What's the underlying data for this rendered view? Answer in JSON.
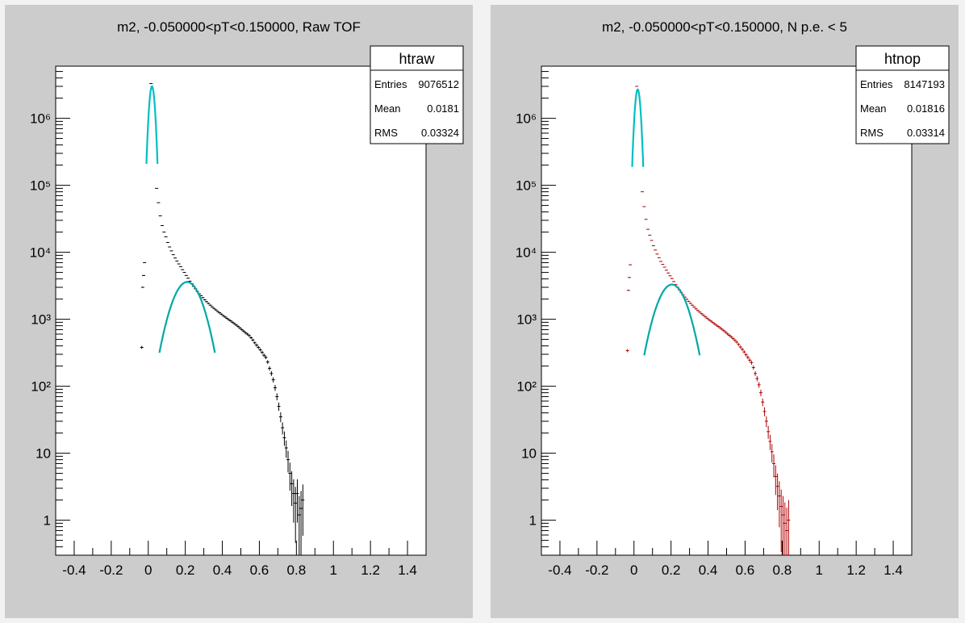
{
  "chart_data": [
    {
      "type": "scatter",
      "title": "m2, -0.050000<pT<0.150000, Raw TOF",
      "xlabel": "",
      "ylabel": "",
      "xlim": [
        -0.5,
        1.5
      ],
      "ylim": [
        0.3,
        6000000
      ],
      "yscale": "log",
      "grid": false,
      "x_ticks": [
        "-0.4",
        "-0.2",
        "0",
        "0.2",
        "0.4",
        "0.6",
        "0.8",
        "1",
        "1.2",
        "1.4"
      ],
      "y_ticks": [
        "1",
        "10",
        "10²",
        "10³",
        "10⁴",
        "10⁵",
        "10⁶"
      ],
      "marker_color": "#000000",
      "stats": {
        "name": "htraw",
        "rows": [
          {
            "label": "Entries",
            "value": "9076512"
          },
          {
            "label": "Mean",
            "value": "0.0181"
          },
          {
            "label": "RMS",
            "value": "0.03324"
          }
        ]
      },
      "points": [
        [
          -0.035,
          380
        ],
        [
          -0.03,
          3000
        ],
        [
          -0.025,
          4500
        ],
        [
          -0.02,
          7000
        ],
        [
          0.015,
          3300000
        ],
        [
          0.045,
          90000
        ],
        [
          0.055,
          55000
        ],
        [
          0.065,
          35000
        ],
        [
          0.075,
          25000
        ],
        [
          0.085,
          20000
        ],
        [
          0.095,
          17000
        ],
        [
          0.105,
          14000
        ],
        [
          0.115,
          12000
        ],
        [
          0.125,
          10500
        ],
        [
          0.135,
          9200
        ],
        [
          0.145,
          8200
        ],
        [
          0.155,
          7400
        ],
        [
          0.165,
          6700
        ],
        [
          0.175,
          6100
        ],
        [
          0.185,
          5500
        ],
        [
          0.195,
          5000
        ],
        [
          0.205,
          4500
        ],
        [
          0.215,
          4100
        ],
        [
          0.225,
          3700
        ],
        [
          0.235,
          3400
        ],
        [
          0.245,
          3100
        ],
        [
          0.255,
          2850
        ],
        [
          0.265,
          2600
        ],
        [
          0.275,
          2400
        ],
        [
          0.285,
          2250
        ],
        [
          0.295,
          2100
        ],
        [
          0.305,
          1950
        ],
        [
          0.315,
          1830
        ],
        [
          0.325,
          1720
        ],
        [
          0.335,
          1620
        ],
        [
          0.345,
          1530
        ],
        [
          0.355,
          1450
        ],
        [
          0.365,
          1380
        ],
        [
          0.375,
          1310
        ],
        [
          0.385,
          1250
        ],
        [
          0.395,
          1190
        ],
        [
          0.405,
          1130
        ],
        [
          0.415,
          1080
        ],
        [
          0.425,
          1030
        ],
        [
          0.435,
          985
        ],
        [
          0.445,
          945
        ],
        [
          0.455,
          900
        ],
        [
          0.465,
          860
        ],
        [
          0.475,
          820
        ],
        [
          0.485,
          780
        ],
        [
          0.495,
          740
        ],
        [
          0.505,
          700
        ],
        [
          0.515,
          665
        ],
        [
          0.525,
          630
        ],
        [
          0.535,
          600
        ],
        [
          0.545,
          570
        ],
        [
          0.555,
          530
        ],
        [
          0.565,
          490
        ],
        [
          0.575,
          445
        ],
        [
          0.585,
          410
        ],
        [
          0.595,
          380
        ],
        [
          0.605,
          350
        ],
        [
          0.615,
          320
        ],
        [
          0.625,
          290
        ],
        [
          0.635,
          270
        ],
        [
          0.645,
          230
        ],
        [
          0.655,
          185
        ],
        [
          0.665,
          155
        ],
        [
          0.675,
          125
        ],
        [
          0.685,
          95
        ],
        [
          0.695,
          70
        ],
        [
          0.705,
          50
        ],
        [
          0.715,
          35
        ],
        [
          0.725,
          24
        ],
        [
          0.735,
          17
        ],
        [
          0.745,
          12
        ],
        [
          0.755,
          8
        ],
        [
          0.765,
          5
        ],
        [
          0.775,
          3.5
        ],
        [
          0.785,
          2.5
        ],
        [
          0.795,
          1.8
        ],
        [
          0.805,
          2.5
        ],
        [
          0.815,
          1.2
        ],
        [
          0.825,
          1.5
        ],
        [
          0.835,
          2
        ]
      ],
      "fits": [
        {
          "name": "",
          "color": "#00bfc4",
          "amp": 3000000,
          "mean": 0.02,
          "sigma": 0.013,
          "x_range": [
            -0.01,
            0.05
          ]
        },
        {
          "name": "",
          "color": "#00a8a8",
          "amp": 3600,
          "mean": 0.21,
          "sigma": 0.068,
          "x_range": [
            0.06,
            0.36
          ]
        }
      ]
    },
    {
      "type": "scatter",
      "title": "m2, -0.050000<pT<0.150000, N p.e. < 5",
      "xlabel": "",
      "ylabel": "",
      "xlim": [
        -0.5,
        1.5
      ],
      "ylim": [
        0.3,
        6000000
      ],
      "yscale": "log",
      "grid": false,
      "x_ticks": [
        "-0.4",
        "-0.2",
        "0",
        "0.2",
        "0.4",
        "0.6",
        "0.8",
        "1",
        "1.2",
        "1.4"
      ],
      "y_ticks": [
        "1",
        "10",
        "10²",
        "10³",
        "10⁴",
        "10⁵",
        "10⁶"
      ],
      "marker_color": "#b00000",
      "stats": {
        "name": "htnop",
        "rows": [
          {
            "label": "Entries",
            "value": "8147193"
          },
          {
            "label": "Mean",
            "value": "0.01816"
          },
          {
            "label": "RMS",
            "value": "0.03314"
          }
        ]
      },
      "points": [
        [
          -0.035,
          340
        ],
        [
          -0.03,
          2700
        ],
        [
          -0.025,
          4200
        ],
        [
          -0.02,
          6500
        ],
        [
          0.015,
          3000000
        ],
        [
          0.045,
          80000
        ],
        [
          0.055,
          48000
        ],
        [
          0.065,
          31000
        ],
        [
          0.075,
          22000
        ],
        [
          0.085,
          18000
        ],
        [
          0.095,
          15000
        ],
        [
          0.105,
          12500
        ],
        [
          0.115,
          10800
        ],
        [
          0.125,
          9400
        ],
        [
          0.135,
          8300
        ],
        [
          0.145,
          7300
        ],
        [
          0.155,
          6600
        ],
        [
          0.165,
          6000
        ],
        [
          0.175,
          5400
        ],
        [
          0.185,
          4900
        ],
        [
          0.195,
          4450
        ],
        [
          0.205,
          4050
        ],
        [
          0.215,
          3650
        ],
        [
          0.225,
          3300
        ],
        [
          0.235,
          3000
        ],
        [
          0.245,
          2750
        ],
        [
          0.255,
          2520
        ],
        [
          0.265,
          2320
        ],
        [
          0.275,
          2140
        ],
        [
          0.285,
          1990
        ],
        [
          0.295,
          1850
        ],
        [
          0.305,
          1730
        ],
        [
          0.315,
          1620
        ],
        [
          0.325,
          1520
        ],
        [
          0.335,
          1430
        ],
        [
          0.345,
          1350
        ],
        [
          0.355,
          1280
        ],
        [
          0.365,
          1210
        ],
        [
          0.375,
          1150
        ],
        [
          0.385,
          1090
        ],
        [
          0.395,
          1035
        ],
        [
          0.405,
          985
        ],
        [
          0.415,
          940
        ],
        [
          0.425,
          895
        ],
        [
          0.435,
          855
        ],
        [
          0.445,
          815
        ],
        [
          0.455,
          780
        ],
        [
          0.465,
          745
        ],
        [
          0.475,
          710
        ],
        [
          0.485,
          675
        ],
        [
          0.495,
          640
        ],
        [
          0.505,
          605
        ],
        [
          0.515,
          575
        ],
        [
          0.525,
          545
        ],
        [
          0.535,
          515
        ],
        [
          0.545,
          485
        ],
        [
          0.555,
          455
        ],
        [
          0.565,
          420
        ],
        [
          0.575,
          385
        ],
        [
          0.585,
          355
        ],
        [
          0.595,
          325
        ],
        [
          0.605,
          295
        ],
        [
          0.615,
          270
        ],
        [
          0.625,
          245
        ],
        [
          0.635,
          225
        ],
        [
          0.645,
          190
        ],
        [
          0.655,
          155
        ],
        [
          0.665,
          130
        ],
        [
          0.675,
          105
        ],
        [
          0.685,
          80
        ],
        [
          0.695,
          58
        ],
        [
          0.705,
          42
        ],
        [
          0.715,
          30
        ],
        [
          0.725,
          21
        ],
        [
          0.735,
          15
        ],
        [
          0.745,
          10.5
        ],
        [
          0.755,
          7
        ],
        [
          0.765,
          4.5
        ],
        [
          0.775,
          3.2
        ],
        [
          0.785,
          2.3
        ],
        [
          0.795,
          1.6
        ],
        [
          0.805,
          1.2
        ],
        [
          0.815,
          0.9
        ],
        [
          0.825,
          0.7
        ],
        [
          0.835,
          1
        ]
      ],
      "fits": [
        {
          "name": "",
          "color": "#00bfc4",
          "amp": 2700000,
          "mean": 0.02,
          "sigma": 0.013,
          "x_range": [
            -0.01,
            0.05
          ]
        },
        {
          "name": "",
          "color": "#00a8a8",
          "amp": 3300,
          "mean": 0.205,
          "sigma": 0.068,
          "x_range": [
            0.055,
            0.355
          ]
        }
      ]
    }
  ]
}
